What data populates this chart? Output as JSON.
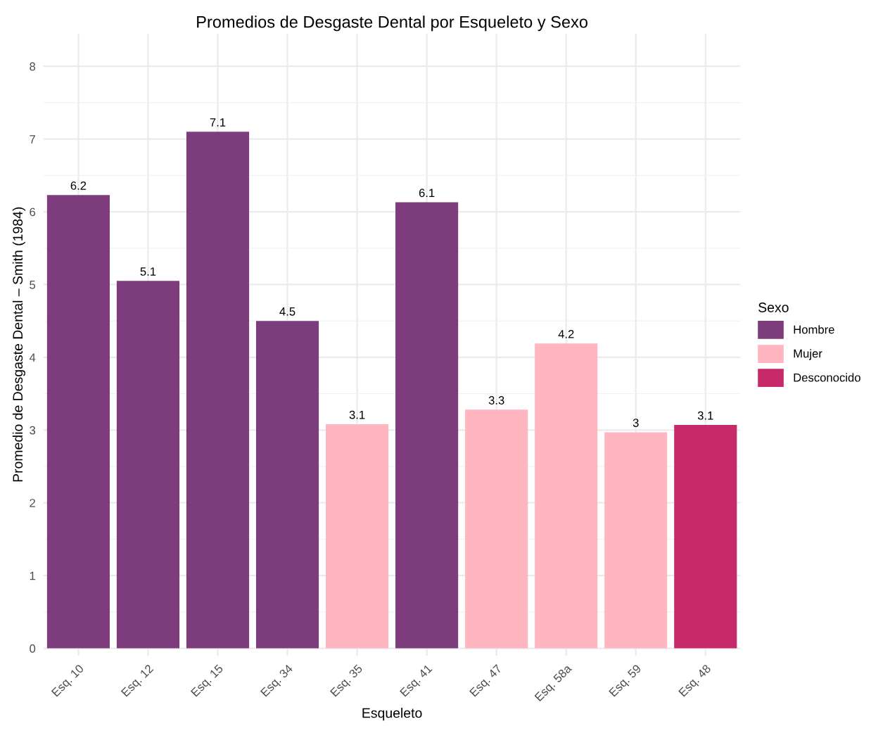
{
  "chart_data": {
    "type": "bar",
    "title": "Promedios de Desgaste Dental por Esqueleto y Sexo",
    "xlabel": "Esqueleto",
    "ylabel": "Promedio de Desgaste Dental – Smith (1984)",
    "legend_title": "Sexo",
    "categories": [
      "Esq. 10",
      "Esq. 12",
      "Esq. 15",
      "Esq. 34",
      "Esq. 35",
      "Esq. 41",
      "Esq. 47",
      "Esq. 58a",
      "Esq. 59",
      "Esq. 48"
    ],
    "series": [
      {
        "name": "Hombre",
        "color": "#7d3c7b",
        "values": [
          6.23,
          5.05,
          7.1,
          4.5,
          null,
          6.13,
          null,
          null,
          null,
          null
        ],
        "value_labels": [
          "6.2",
          "5.1",
          "7.1",
          "4.5",
          null,
          "6.1",
          null,
          null,
          null,
          null
        ]
      },
      {
        "name": "Mujer",
        "color": "#ffb6c1",
        "values": [
          null,
          null,
          null,
          null,
          3.08,
          null,
          3.28,
          4.19,
          2.97,
          null
        ],
        "value_labels": [
          null,
          null,
          null,
          null,
          "3.1",
          null,
          "3.3",
          "4.2",
          "3",
          null
        ]
      },
      {
        "name": "Desconocido",
        "color": "#c62a6a",
        "values": [
          null,
          null,
          null,
          null,
          null,
          null,
          null,
          null,
          null,
          3.07
        ],
        "value_labels": [
          null,
          null,
          null,
          null,
          null,
          null,
          null,
          null,
          null,
          "3.1"
        ]
      }
    ],
    "ylim": [
      -0.1,
      8.45
    ],
    "yticks": [
      0,
      1,
      2,
      3,
      4,
      5,
      6,
      7,
      8
    ],
    "grid": true,
    "legend": "right"
  }
}
